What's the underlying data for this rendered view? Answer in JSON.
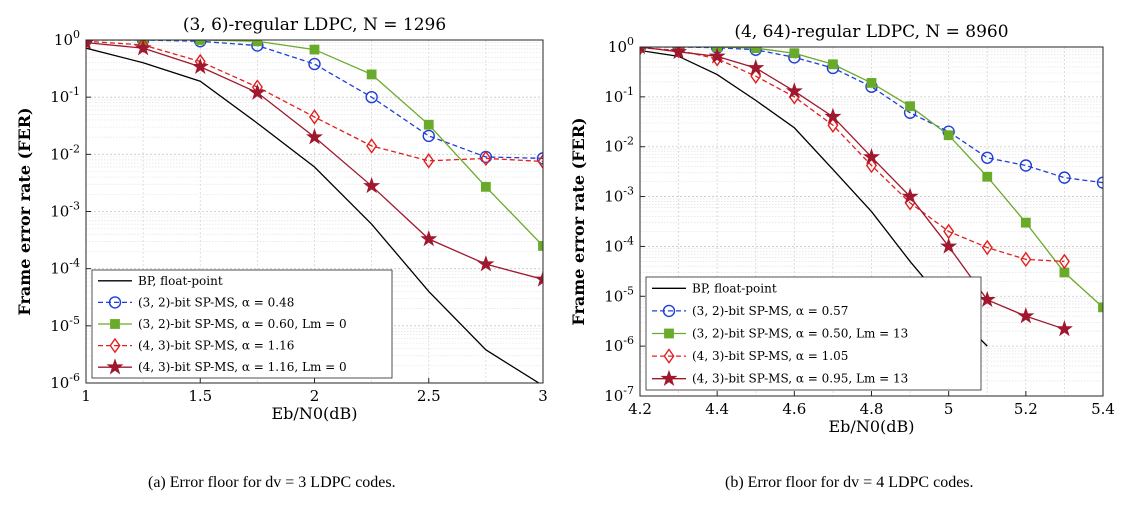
{
  "chart_data": [
    {
      "type": "line",
      "title": "(3, 6)-regular LDPC, N = 1296",
      "xlabel": "Eb/N0(dB)",
      "ylabel": "Frame error rate (FER)",
      "xlim": [
        1,
        3
      ],
      "ylim": [
        1e-06,
        1
      ],
      "yscale": "log",
      "grid": true,
      "legend_position": "bottom-left",
      "xticks": [
        1,
        1.5,
        2,
        2.5,
        3
      ],
      "xtick_labels": [
        "1",
        "1.5",
        "2",
        "2.5",
        "3"
      ],
      "ytick_labels": [
        "10-6",
        "10-5",
        "10-4",
        "10-3",
        "10-2",
        "10-1",
        "100"
      ],
      "series": [
        {
          "name": "BP, float-point",
          "color": "#000000",
          "marker": "none",
          "dash": "solid",
          "x": [
            1,
            1.25,
            1.5,
            1.75,
            2,
            2.25,
            2.5,
            2.75,
            3
          ],
          "y": [
            0.72,
            0.4,
            0.19,
            0.035,
            0.006,
            0.0006,
            4e-05,
            3.8e-06,
            9e-07
          ]
        },
        {
          "name": "(3, 2)-bit SP-MS, α = 0.48",
          "color": "#1f3fd6",
          "marker": "circle",
          "dash": "dashed",
          "x": [
            1,
            1.25,
            1.5,
            1.75,
            2,
            2.25,
            2.5,
            2.75,
            3
          ],
          "y": [
            1.0,
            1.0,
            0.95,
            0.8,
            0.38,
            0.1,
            0.021,
            0.009,
            0.0085
          ]
        },
        {
          "name": "(3, 2)-bit SP-MS, α = 0.60, Lm = 0",
          "color": "#6aaa2a",
          "marker": "square",
          "dash": "solid",
          "x": [
            1,
            1.25,
            1.5,
            1.75,
            2,
            2.25,
            2.5,
            2.75,
            3
          ],
          "y": [
            1.0,
            1.0,
            1.0,
            0.95,
            0.68,
            0.25,
            0.033,
            0.0027,
            0.00025
          ]
        },
        {
          "name": "(4, 3)-bit SP-MS, α = 1.16",
          "color": "#e02020",
          "marker": "diamond",
          "dash": "dashed",
          "x": [
            1,
            1.25,
            1.5,
            1.75,
            2,
            2.25,
            2.5,
            2.75,
            3
          ],
          "y": [
            0.95,
            0.82,
            0.42,
            0.15,
            0.045,
            0.014,
            0.0077,
            0.0085,
            0.0075
          ]
        },
        {
          "name": "(4, 3)-bit SP-MS, α = 1.16, Lm = 0",
          "color": "#a0182e",
          "marker": "star",
          "dash": "solid",
          "x": [
            1,
            1.25,
            1.5,
            1.75,
            2,
            2.25,
            2.5,
            2.75,
            3
          ],
          "y": [
            0.9,
            0.72,
            0.34,
            0.12,
            0.02,
            0.0028,
            0.00033,
            0.00012,
            6.5e-05
          ]
        }
      ],
      "caption": "(a) Error floor for dv = 3 LDPC codes."
    },
    {
      "type": "line",
      "title": "(4, 64)-regular LDPC, N = 8960",
      "xlabel": "Eb/N0(dB)",
      "ylabel": "Frame error rate (FER)",
      "xlim": [
        4.2,
        5.4
      ],
      "ylim": [
        1e-07,
        1
      ],
      "yscale": "log",
      "grid": true,
      "legend_position": "bottom-left",
      "xticks": [
        4.2,
        4.4,
        4.6,
        4.8,
        5,
        5.2,
        5.4
      ],
      "xtick_labels": [
        "4.2",
        "4.4",
        "4.6",
        "4.8",
        "5",
        "5.2",
        "5.4"
      ],
      "ytick_labels": [
        "10-7",
        "10-6",
        "10-5",
        "10-4",
        "10-3",
        "10-2",
        "10-1",
        "100"
      ],
      "series": [
        {
          "name": "BP, float-point",
          "color": "#000000",
          "marker": "none",
          "dash": "solid",
          "x": [
            4.2,
            4.3,
            4.4,
            4.5,
            4.6,
            4.7,
            4.8,
            4.9,
            5.0,
            5.1
          ],
          "y": [
            0.85,
            0.65,
            0.28,
            0.085,
            0.024,
            0.0035,
            0.0005,
            5e-05,
            6e-06,
            1e-06
          ]
        },
        {
          "name": "(3, 2)-bit SP-MS, α = 0.57",
          "color": "#1f3fd6",
          "marker": "circle",
          "dash": "dashed",
          "x": [
            4.2,
            4.3,
            4.4,
            4.5,
            4.6,
            4.7,
            4.8,
            4.9,
            5.0,
            5.1,
            5.2,
            5.3,
            5.4
          ],
          "y": [
            1.0,
            1.0,
            0.97,
            0.88,
            0.62,
            0.38,
            0.16,
            0.048,
            0.02,
            0.006,
            0.0042,
            0.0024,
            0.0019
          ]
        },
        {
          "name": "(3, 2)-bit SP-MS, α = 0.50, Lm = 13",
          "color": "#6aaa2a",
          "marker": "square",
          "dash": "solid",
          "x": [
            4.2,
            4.3,
            4.4,
            4.5,
            4.6,
            4.7,
            4.8,
            4.9,
            5.0,
            5.1,
            5.2,
            5.3,
            5.4
          ],
          "y": [
            1.0,
            1.0,
            1.0,
            0.95,
            0.75,
            0.45,
            0.19,
            0.065,
            0.017,
            0.0025,
            0.0003,
            3e-05,
            6e-06
          ]
        },
        {
          "name": "(4, 3)-bit SP-MS, α = 1.05",
          "color": "#e02020",
          "marker": "diamond",
          "dash": "dashed",
          "x": [
            4.2,
            4.3,
            4.4,
            4.5,
            4.6,
            4.7,
            4.8,
            4.9,
            5.0,
            5.1,
            5.2,
            5.3
          ],
          "y": [
            0.97,
            0.85,
            0.58,
            0.26,
            0.1,
            0.027,
            0.0042,
            0.00075,
            0.0002,
            9.5e-05,
            5.5e-05,
            5e-05
          ]
        },
        {
          "name": "(4, 3)-bit SP-MS, α = 0.95, Lm = 13",
          "color": "#a0182e",
          "marker": "star",
          "dash": "solid",
          "x": [
            4.2,
            4.3,
            4.4,
            4.5,
            4.6,
            4.7,
            4.8,
            4.9,
            5.0,
            5.1,
            5.2,
            5.3
          ],
          "y": [
            1.0,
            0.8,
            0.65,
            0.38,
            0.13,
            0.04,
            0.0062,
            0.001,
            0.0001,
            8.5e-06,
            4e-06,
            2.2e-06
          ]
        }
      ],
      "caption": "(b) Error floor for dv = 4 LDPC codes."
    }
  ]
}
